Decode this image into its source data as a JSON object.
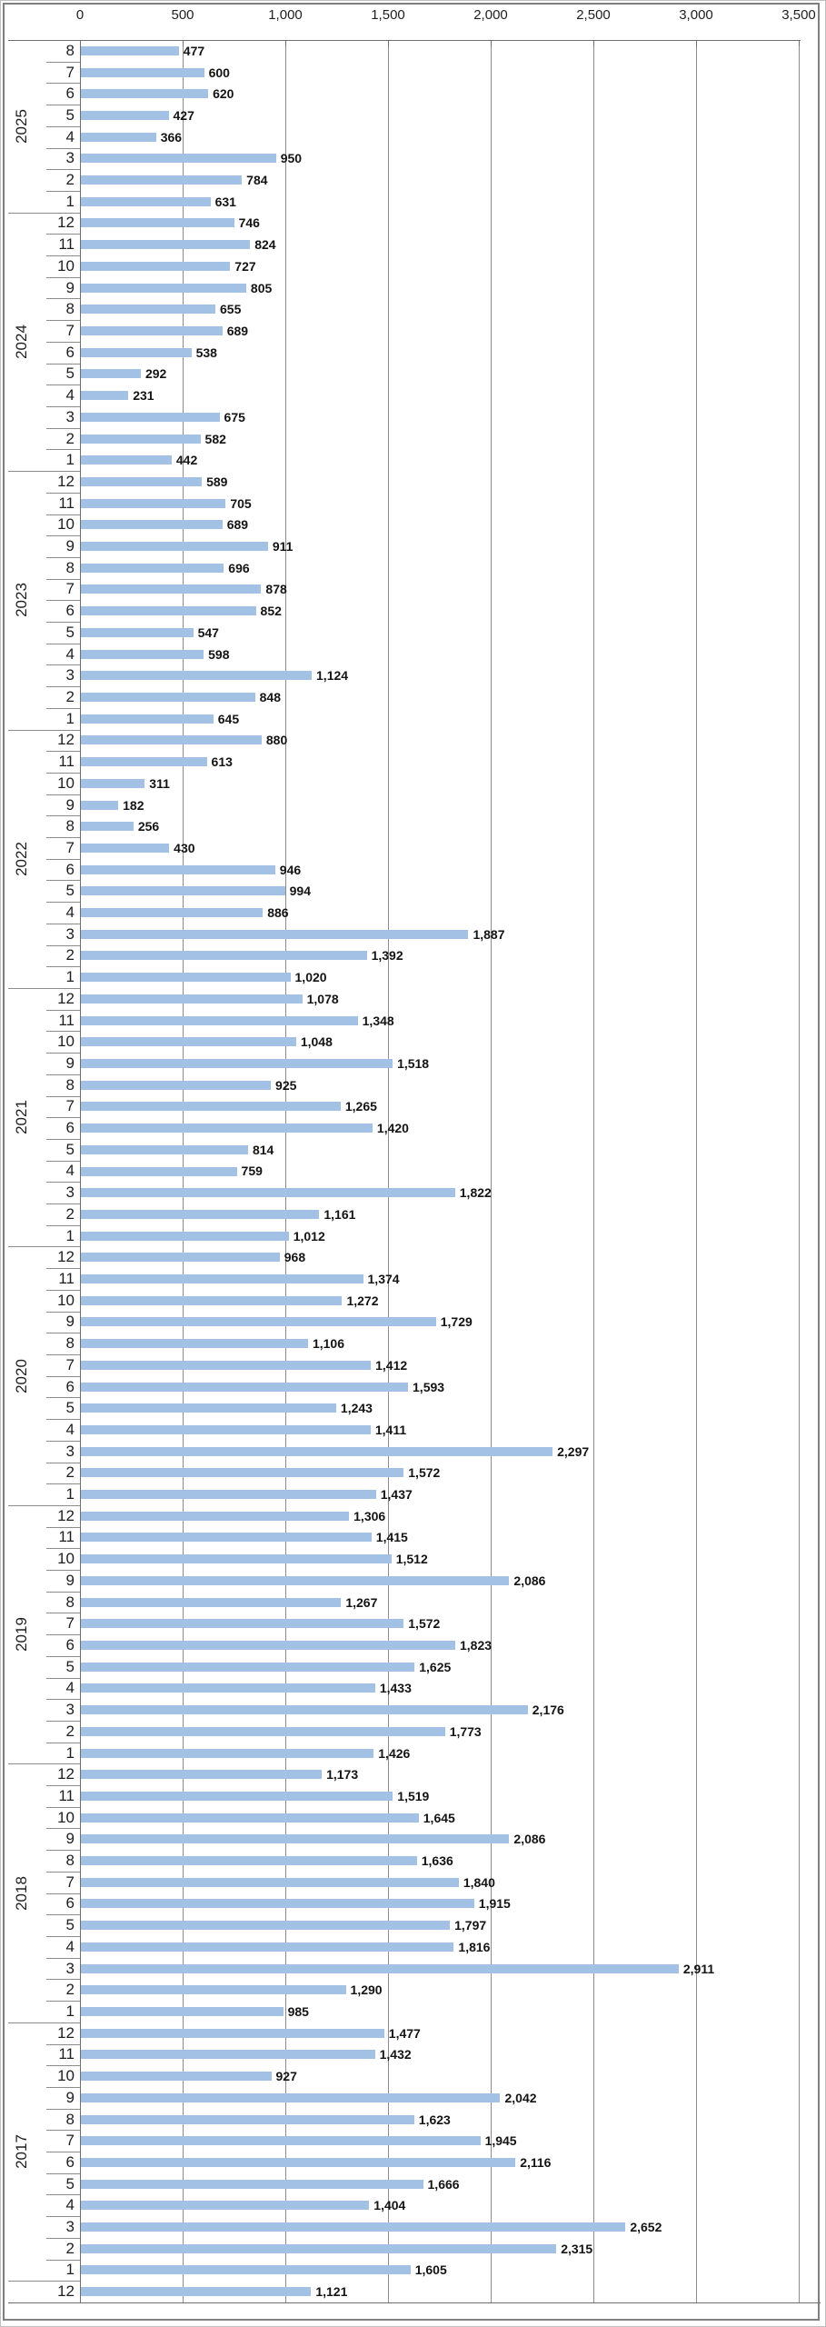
{
  "chart_data": {
    "type": "bar",
    "orientation": "horizontal",
    "title": "",
    "xlabel": "",
    "ylabel": "",
    "xlim": [
      0,
      3500
    ],
    "grid": true,
    "x_tick_labels": [
      "0",
      "500",
      "1,000",
      "1,500",
      "2,000",
      "2,500",
      "3,000",
      "3,500"
    ],
    "x_tick_values": [
      0,
      500,
      1000,
      1500,
      2000,
      2500,
      3000,
      3500
    ],
    "bar_color": "#a2c1e4",
    "gridline_color": "#8c8c8c",
    "groups": [
      {
        "year": "2025",
        "months": [
          "8",
          "7",
          "6",
          "5",
          "4",
          "3",
          "2",
          "1"
        ],
        "values": [
          477,
          600,
          620,
          427,
          366,
          950,
          784,
          631
        ]
      },
      {
        "year": "2024",
        "months": [
          "12",
          "11",
          "10",
          "9",
          "8",
          "7",
          "6",
          "5",
          "4",
          "3",
          "2",
          "1"
        ],
        "values": [
          746,
          824,
          727,
          805,
          655,
          689,
          538,
          292,
          231,
          675,
          582,
          442
        ]
      },
      {
        "year": "2023",
        "months": [
          "12",
          "11",
          "10",
          "9",
          "8",
          "7",
          "6",
          "5",
          "4",
          "3",
          "2",
          "1"
        ],
        "values": [
          589,
          705,
          689,
          911,
          696,
          878,
          852,
          547,
          598,
          1124,
          848,
          645
        ]
      },
      {
        "year": "2022",
        "months": [
          "12",
          "11",
          "10",
          "9",
          "8",
          "7",
          "6",
          "5",
          "4",
          "3",
          "2",
          "1"
        ],
        "values": [
          880,
          613,
          311,
          182,
          256,
          430,
          946,
          994,
          886,
          1887,
          1392,
          1020
        ]
      },
      {
        "year": "2021",
        "months": [
          "12",
          "11",
          "10",
          "9",
          "8",
          "7",
          "6",
          "5",
          "4",
          "3",
          "2",
          "1"
        ],
        "values": [
          1078,
          1348,
          1048,
          1518,
          925,
          1265,
          1420,
          814,
          759,
          1822,
          1161,
          1012
        ]
      },
      {
        "year": "2020",
        "months": [
          "12",
          "11",
          "10",
          "9",
          "8",
          "7",
          "6",
          "5",
          "4",
          "3",
          "2",
          "1"
        ],
        "values": [
          968,
          1374,
          1272,
          1729,
          1106,
          1412,
          1593,
          1243,
          1411,
          2297,
          1572,
          1437
        ]
      },
      {
        "year": "2019",
        "months": [
          "12",
          "11",
          "10",
          "9",
          "8",
          "7",
          "6",
          "5",
          "4",
          "3",
          "2",
          "1"
        ],
        "values": [
          1306,
          1415,
          1512,
          2086,
          1267,
          1572,
          1823,
          1625,
          1433,
          2176,
          1773,
          1426
        ]
      },
      {
        "year": "2018",
        "months": [
          "12",
          "11",
          "10",
          "9",
          "8",
          "7",
          "6",
          "5",
          "4",
          "3",
          "2",
          "1"
        ],
        "values": [
          1173,
          1519,
          1645,
          2086,
          1636,
          1840,
          1915,
          1797,
          1816,
          2911,
          1290,
          985
        ]
      },
      {
        "year": "2017",
        "months": [
          "12",
          "11",
          "10",
          "9",
          "8",
          "7",
          "6",
          "5",
          "4",
          "3",
          "2",
          "1"
        ],
        "values": [
          1477,
          1432,
          927,
          2042,
          1623,
          1945,
          2116,
          1666,
          1404,
          2652,
          2315,
          1605
        ]
      },
      {
        "year": "",
        "months": [
          "12"
        ],
        "values": [
          1121
        ]
      }
    ]
  }
}
